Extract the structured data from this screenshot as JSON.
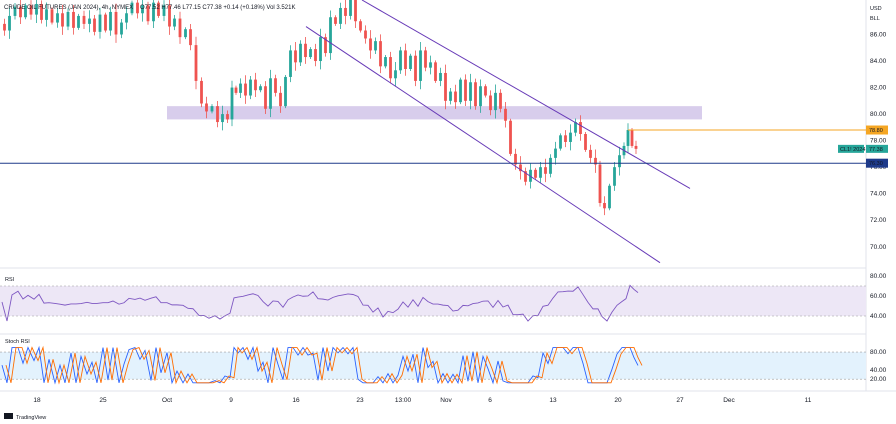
{
  "header": {
    "symbol": "CRUDE OIL FUTURES (JAN 2024), 4h, NYMEX",
    "ohlc": "O77.52 H77.46 L77.15 C77.38 +0.14 (+0.18%) Vol 3.521K"
  },
  "price_axis": {
    "currency": "USD",
    "unit_label": "BLL",
    "ticks": [
      "86.00",
      "84.00",
      "82.00",
      "80.00",
      "78.00",
      "76.00",
      "74.00",
      "72.00",
      "70.00"
    ],
    "ylim": [
      68.4,
      88.6
    ],
    "tags": {
      "resistance": "78.80",
      "contract_label": "CL1! 2024",
      "last": "77.38",
      "support": "76.30"
    }
  },
  "x_axis": {
    "labels": [
      "18",
      "25",
      "Oct",
      "9",
      "16",
      "23",
      "13:00",
      "Nov",
      "6",
      "13",
      "20",
      "27",
      "Dec",
      "11"
    ]
  },
  "colors": {
    "up": "#26a69a",
    "down": "#ef5350",
    "channel": "#673ab7",
    "zone": "#d1c4e9",
    "support_line": "#1e3a8a",
    "resistance_line": "#f5a623",
    "rsi_line": "#7e57c2",
    "stoch_k": "#2962ff",
    "stoch_d": "#ff6d00"
  },
  "chart_data": [
    {
      "type": "candlestick",
      "series": "price",
      "path": [
        [
          0,
          86.8
        ],
        [
          5,
          86.3
        ],
        [
          10,
          87.4
        ],
        [
          16,
          88.1
        ],
        [
          21,
          87.3
        ],
        [
          26,
          88.2
        ],
        [
          32,
          87.5
        ],
        [
          37,
          88.3
        ],
        [
          42,
          87.1
        ],
        [
          47,
          87.9
        ],
        [
          53,
          86.9
        ],
        [
          58,
          87.6
        ],
        [
          63,
          86.6
        ],
        [
          69,
          87.7
        ],
        [
          74,
          86.5
        ],
        [
          79,
          87.4
        ],
        [
          85,
          86.8
        ],
        [
          90,
          87.2
        ],
        [
          95,
          86.2
        ],
        [
          101,
          87.5
        ],
        [
          106,
          86.3
        ],
        [
          111,
          87.7
        ],
        [
          117,
          86.0
        ],
        [
          122,
          86.9
        ],
        [
          127,
          87.6
        ],
        [
          133,
          88.4
        ],
        [
          138,
          87.6
        ],
        [
          143,
          88.2
        ],
        [
          149,
          87.0
        ],
        [
          154,
          88.4
        ],
        [
          159,
          87.4
        ],
        [
          165,
          88.2
        ],
        [
          170,
          86.6
        ],
        [
          175,
          87.2
        ],
        [
          181,
          85.8
        ],
        [
          186,
          86.4
        ],
        [
          191,
          85.2
        ],
        [
          197,
          82.5
        ],
        [
          202,
          80.8
        ],
        [
          207,
          80.2
        ],
        [
          213,
          80.6
        ],
        [
          218,
          79.4
        ],
        [
          223,
          80.0
        ],
        [
          228,
          79.6
        ],
        [
          232,
          82.0
        ],
        [
          236,
          81.6
        ],
        [
          241,
          82.3
        ],
        [
          246,
          81.4
        ],
        [
          251,
          82.6
        ],
        [
          256,
          81.8
        ],
        [
          261,
          82.1
        ],
        [
          266,
          80.4
        ],
        [
          271,
          82.7
        ],
        [
          276,
          81.6
        ],
        [
          281,
          80.6
        ],
        [
          286,
          82.8
        ],
        [
          291,
          84.8
        ],
        [
          296,
          83.9
        ],
        [
          301,
          85.3
        ],
        [
          306,
          84.3
        ],
        [
          311,
          84.9
        ],
        [
          316,
          84.0
        ],
        [
          321,
          85.8
        ],
        [
          326,
          84.6
        ],
        [
          331,
          87.3
        ],
        [
          336,
          86.8
        ],
        [
          341,
          88.0
        ],
        [
          346,
          87.4
        ],
        [
          351,
          88.8
        ],
        [
          356,
          87.0
        ],
        [
          361,
          86.3
        ],
        [
          366,
          85.7
        ],
        [
          371,
          84.8
        ],
        [
          376,
          85.5
        ],
        [
          381,
          83.6
        ],
        [
          386,
          84.3
        ],
        [
          391,
          82.7
        ],
        [
          396,
          83.3
        ],
        [
          401,
          84.8
        ],
        [
          406,
          83.4
        ],
        [
          411,
          84.4
        ],
        [
          416,
          82.5
        ],
        [
          421,
          84.8
        ],
        [
          426,
          83.5
        ],
        [
          431,
          83.9
        ],
        [
          436,
          82.5
        ],
        [
          441,
          83.1
        ],
        [
          446,
          81.0
        ],
        [
          451,
          81.7
        ],
        [
          456,
          80.9
        ],
        [
          461,
          82.6
        ],
        [
          466,
          81.0
        ],
        [
          471,
          82.4
        ],
        [
          476,
          80.6
        ],
        [
          481,
          82.1
        ],
        [
          486,
          81.4
        ],
        [
          491,
          80.3
        ],
        [
          496,
          81.6
        ],
        [
          501,
          80.4
        ],
        [
          506,
          79.5
        ],
        [
          511,
          77.0
        ],
        [
          516,
          76.2
        ],
        [
          521,
          75.7
        ],
        [
          526,
          74.9
        ],
        [
          531,
          75.8
        ],
        [
          536,
          75.2
        ],
        [
          541,
          76.0
        ],
        [
          546,
          75.5
        ],
        [
          551,
          76.7
        ],
        [
          556,
          77.4
        ],
        [
          561,
          78.4
        ],
        [
          566,
          77.9
        ],
        [
          571,
          78.6
        ],
        [
          576,
          79.4
        ],
        [
          581,
          78.5
        ],
        [
          586,
          77.3
        ],
        [
          591,
          76.7
        ],
        [
          596,
          76.2
        ],
        [
          600,
          73.3
        ],
        [
          605,
          72.9
        ],
        [
          610,
          74.6
        ],
        [
          615,
          76.0
        ],
        [
          620,
          76.9
        ],
        [
          624,
          77.6
        ],
        [
          628,
          78.8
        ],
        [
          632,
          77.6
        ],
        [
          636,
          77.38
        ]
      ]
    },
    {
      "type": "line",
      "series": "rsi",
      "yticks": [
        "80.00",
        "60.00",
        "40.00"
      ],
      "ylim": [
        30,
        82
      ],
      "band": [
        40,
        70
      ]
    },
    {
      "type": "line",
      "series": "stoch_rsi",
      "yticks": [
        "80.00",
        "40.00",
        "20.00"
      ],
      "ylim": [
        5,
        100
      ],
      "band": [
        20,
        80
      ]
    }
  ],
  "footer": {
    "brand": "TradingView"
  }
}
